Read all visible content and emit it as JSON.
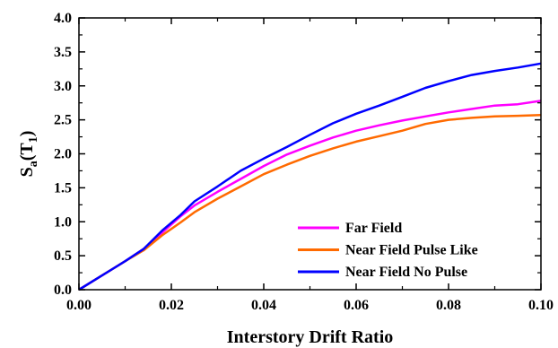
{
  "chart_data": {
    "type": "line",
    "title": "",
    "xlabel": "Interstory Drift Ratio",
    "ylabel": {
      "main": "S",
      "sub1": "a",
      "mid": "(T",
      "sub2": "1",
      "end": ")"
    },
    "xlim": [
      0.0,
      0.1
    ],
    "ylim": [
      0.0,
      4.0
    ],
    "x_ticks": [
      "0.00",
      "0.02",
      "0.04",
      "0.06",
      "0.08",
      "0.10"
    ],
    "y_ticks": [
      "0.0",
      "0.5",
      "1.0",
      "1.5",
      "2.0",
      "2.5",
      "3.0",
      "3.5",
      "4.0"
    ],
    "grid": false,
    "legend_position": "bottom-right",
    "series": [
      {
        "name": "Far Field",
        "color": "#ff00ff",
        "points": [
          [
            0,
            0
          ],
          [
            0.005,
            0.21
          ],
          [
            0.01,
            0.42
          ],
          [
            0.014,
            0.6
          ],
          [
            0.018,
            0.84
          ],
          [
            0.022,
            1.08
          ],
          [
            0.025,
            1.24
          ],
          [
            0.03,
            1.44
          ],
          [
            0.035,
            1.63
          ],
          [
            0.04,
            1.82
          ],
          [
            0.045,
            1.99
          ],
          [
            0.05,
            2.12
          ],
          [
            0.055,
            2.24
          ],
          [
            0.06,
            2.34
          ],
          [
            0.065,
            2.42
          ],
          [
            0.07,
            2.49
          ],
          [
            0.075,
            2.55
          ],
          [
            0.08,
            2.61
          ],
          [
            0.085,
            2.66
          ],
          [
            0.09,
            2.71
          ],
          [
            0.095,
            2.73
          ],
          [
            0.1,
            2.78
          ]
        ]
      },
      {
        "name": "Near Field Pulse Like",
        "color": "#ff6a00",
        "points": [
          [
            0,
            0
          ],
          [
            0.005,
            0.21
          ],
          [
            0.01,
            0.42
          ],
          [
            0.014,
            0.58
          ],
          [
            0.018,
            0.8
          ],
          [
            0.022,
            0.99
          ],
          [
            0.025,
            1.14
          ],
          [
            0.03,
            1.34
          ],
          [
            0.035,
            1.52
          ],
          [
            0.04,
            1.7
          ],
          [
            0.045,
            1.84
          ],
          [
            0.05,
            1.97
          ],
          [
            0.055,
            2.08
          ],
          [
            0.06,
            2.18
          ],
          [
            0.065,
            2.26
          ],
          [
            0.07,
            2.34
          ],
          [
            0.075,
            2.44
          ],
          [
            0.08,
            2.5
          ],
          [
            0.085,
            2.53
          ],
          [
            0.09,
            2.55
          ],
          [
            0.095,
            2.56
          ],
          [
            0.1,
            2.57
          ]
        ]
      },
      {
        "name": "Near Field No Pulse",
        "color": "#0000ff",
        "points": [
          [
            0,
            0
          ],
          [
            0.005,
            0.21
          ],
          [
            0.01,
            0.42
          ],
          [
            0.014,
            0.6
          ],
          [
            0.018,
            0.87
          ],
          [
            0.022,
            1.1
          ],
          [
            0.025,
            1.3
          ],
          [
            0.03,
            1.52
          ],
          [
            0.035,
            1.75
          ],
          [
            0.04,
            1.93
          ],
          [
            0.045,
            2.1
          ],
          [
            0.05,
            2.28
          ],
          [
            0.055,
            2.45
          ],
          [
            0.06,
            2.59
          ],
          [
            0.065,
            2.71
          ],
          [
            0.07,
            2.84
          ],
          [
            0.075,
            2.97
          ],
          [
            0.08,
            3.07
          ],
          [
            0.085,
            3.16
          ],
          [
            0.09,
            3.22
          ],
          [
            0.095,
            3.27
          ],
          [
            0.1,
            3.33
          ]
        ]
      }
    ]
  }
}
